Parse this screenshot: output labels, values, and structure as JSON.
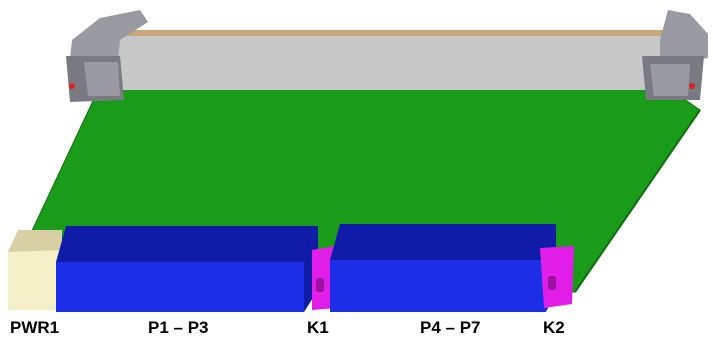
{
  "labels": {
    "pwr1": "PWR1",
    "p1_p3": "P1 – P3",
    "k1": "K1",
    "p4_p7": "P4 – P7",
    "k2": "K2"
  },
  "colors": {
    "pcb": "#1a9b1a",
    "pcb_edge": "#0f6e0f",
    "front_panel": "#c8c8c8",
    "front_panel_top": "#c8a878",
    "connector_blue": "#1c2fe6",
    "connector_blue_top": "#101ca8",
    "key_magenta": "#e01ee8",
    "power_connector": "#f5efc8",
    "handle_metal": "#9a9aa2"
  }
}
